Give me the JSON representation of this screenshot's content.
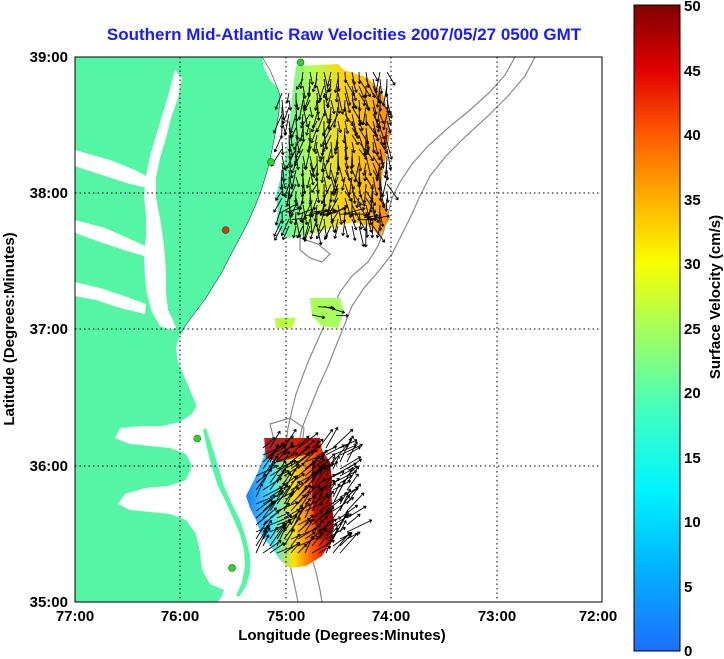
{
  "title": "Southern Mid-Atlantic Raw Velocities 2007/05/27 0500 GMT",
  "xaxis": {
    "label": "Longitude (Degrees:Minutes)",
    "ticks": [
      "77:00",
      "76:00",
      "75:00",
      "74:00",
      "73:00",
      "72:00"
    ]
  },
  "yaxis": {
    "label": "Latitude (Degrees:Minutes)",
    "ticks": [
      "39:00",
      "38:00",
      "37:00",
      "36:00",
      "35:00"
    ]
  },
  "colorbar": {
    "label": "Surface Velocity (cm/s)",
    "ticks": [
      "50",
      "45",
      "40",
      "35",
      "30",
      "25",
      "20",
      "15",
      "10",
      "5",
      "0"
    ],
    "min": 0,
    "max": 50
  },
  "colors": {
    "title": "#1a1aff",
    "land": "#55f5a6",
    "water": "#ffffff",
    "isobath": "#8a8a8a",
    "station_active": "#2bd42b",
    "station_inactive": "#e03010"
  },
  "chart_data": {
    "type": "map",
    "extent": {
      "lon": [
        -77.0,
        -72.0
      ],
      "lat": [
        35.0,
        39.0
      ]
    },
    "grid": true,
    "stations": [
      {
        "lon": -74.86,
        "lat": 38.96,
        "status": "active"
      },
      {
        "lon": -75.14,
        "lat": 38.23,
        "status": "active"
      },
      {
        "lon": -75.57,
        "lat": 37.73,
        "status": "inactive"
      },
      {
        "lon": -75.84,
        "lat": 36.2,
        "status": "active"
      },
      {
        "lon": -75.51,
        "lat": 35.25,
        "status": "active"
      }
    ],
    "fields": [
      {
        "region": "north",
        "speed_range_cm_s": [
          14,
          38
        ]
      },
      {
        "region": "mid",
        "speed_range_cm_s": [
          18,
          24
        ]
      },
      {
        "region": "south",
        "speed_range_cm_s": [
          7,
          50
        ]
      }
    ]
  }
}
